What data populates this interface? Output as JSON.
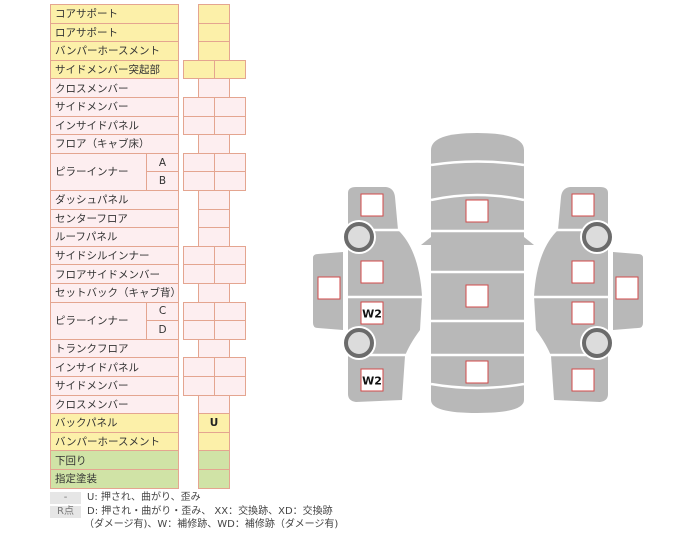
{
  "colors": {
    "yellow": "#fcf0a9",
    "pink": "#fdeef0",
    "green": "#d0e3a6",
    "border": "#e4a590",
    "body": "#b8b8b8",
    "mark_border": "#d24a4a"
  },
  "table": {
    "rows": [
      {
        "label": "コアサポート",
        "cells": "single",
        "color": "yellow"
      },
      {
        "label": "ロアサポート",
        "cells": "single",
        "color": "yellow"
      },
      {
        "label": "バンパーホースメント",
        "cells": "single",
        "color": "yellow"
      },
      {
        "label": "サイドメンバー突起部",
        "cells": "double",
        "color": "yellow"
      },
      {
        "label": "クロスメンバー",
        "cells": "single",
        "color": "pink"
      },
      {
        "label": "サイドメンバー",
        "cells": "double",
        "color": "pink"
      },
      {
        "label": "インサイドパネル",
        "cells": "double",
        "color": "pink"
      },
      {
        "label": "フロア（キャブ床）",
        "cells": "single",
        "color": "pink"
      },
      {
        "label": "ピラーインナー",
        "sub": "A",
        "cells": "double",
        "color": "pink",
        "group_start": true
      },
      {
        "label": "",
        "sub": "B",
        "cells": "double",
        "color": "pink",
        "group_cont": true
      },
      {
        "label": "ダッシュパネル",
        "cells": "single",
        "color": "pink"
      },
      {
        "label": "センターフロア",
        "cells": "single",
        "color": "pink"
      },
      {
        "label": "ルーフパネル",
        "cells": "single",
        "color": "pink"
      },
      {
        "label": "サイドシルインナー",
        "cells": "double",
        "color": "pink"
      },
      {
        "label": "フロアサイドメンバー",
        "cells": "double",
        "color": "pink"
      },
      {
        "label": "セットバック（キャブ背）",
        "cells": "single",
        "color": "pink"
      },
      {
        "label": "ピラーインナー",
        "sub": "C",
        "cells": "double",
        "color": "pink",
        "group_start": true
      },
      {
        "label": "",
        "sub": "D",
        "cells": "double",
        "color": "pink",
        "group_cont": true
      },
      {
        "label": "トランクフロア",
        "cells": "single",
        "color": "pink"
      },
      {
        "label": "インサイドパネル",
        "cells": "double",
        "color": "pink"
      },
      {
        "label": "サイドメンバー",
        "cells": "double",
        "color": "pink"
      },
      {
        "label": "クロスメンバー",
        "cells": "single",
        "color": "pink"
      },
      {
        "label": "バックパネル",
        "cells": "single",
        "color": "yellow",
        "value": "U"
      },
      {
        "label": "バンパーホースメント",
        "cells": "single",
        "color": "yellow"
      },
      {
        "label": "下回り",
        "cells": "single",
        "color": "green"
      },
      {
        "label": "指定塗装",
        "cells": "single",
        "color": "green"
      }
    ]
  },
  "diagram": {
    "marks": [
      {
        "id": "left-front",
        "value": ""
      },
      {
        "id": "left-front-door",
        "value": ""
      },
      {
        "id": "left-rear-door",
        "value": "W2"
      },
      {
        "id": "left-rear",
        "value": "W2"
      },
      {
        "id": "left-mirror-panel",
        "value": ""
      },
      {
        "id": "hood",
        "value": ""
      },
      {
        "id": "roof",
        "value": ""
      },
      {
        "id": "trunk",
        "value": ""
      },
      {
        "id": "right-front",
        "value": ""
      },
      {
        "id": "right-front-door",
        "value": ""
      },
      {
        "id": "right-rear-door",
        "value": ""
      },
      {
        "id": "right-rear",
        "value": ""
      },
      {
        "id": "right-mirror-panel",
        "value": ""
      }
    ]
  },
  "legend": {
    "rows": [
      {
        "key": "-",
        "text": "U: 押され、曲がり、歪み"
      },
      {
        "key": "R点",
        "text": "D: 押され・曲がり・歪み、 XX：交換跡、XD：交換跡"
      },
      {
        "key": "",
        "text": "（ダメージ有)、W：補修跡、WD：補修跡（ダメージ有)"
      }
    ]
  }
}
